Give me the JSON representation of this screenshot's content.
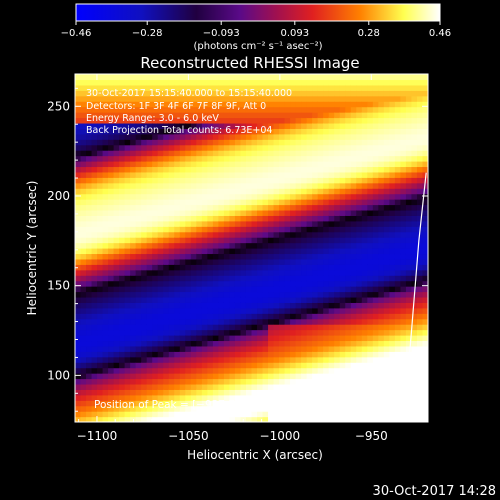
{
  "chart_data": {
    "type": "heatmap",
    "title": "Reconstructed RHESSI Image",
    "xlabel": "Heliocentric X (arcsec)",
    "ylabel": "Heliocentric Y (arcsec)",
    "xlim": [
      -1112,
      -919
    ],
    "ylim": [
      74,
      268
    ],
    "x_ticks": [
      -1100,
      -1050,
      -1000,
      -950
    ],
    "x_tick_labels": [
      "−1100",
      "−1050",
      "−1000",
      "−950"
    ],
    "y_ticks": [
      100,
      150,
      200,
      250
    ],
    "y_tick_labels": [
      "100",
      "150",
      "200",
      "250"
    ],
    "colorbar": {
      "min": -0.46,
      "max": 0.46,
      "ticks": [
        -0.46,
        -0.28,
        -0.093,
        0.093,
        0.28,
        0.46
      ],
      "tick_labels": [
        "−0.46",
        "−0.28",
        "−0.093",
        "0.093",
        "0.28",
        "0.46"
      ],
      "unit_label": "(photons cm⁻² s⁻¹ asec⁻²)",
      "colors": [
        "#0000ff",
        "#1a1aa0",
        "#000000",
        "#5a0a88",
        "#a01050",
        "#e02020",
        "#ff8000",
        "#ffff60",
        "#ffffff"
      ]
    },
    "annotations": {
      "time": "30-Oct-2017 15:15:40.000 to 15:15:40.000",
      "detectors": "Detectors: 1F 3F 4F 6F 7F 8F 9F, Att 0",
      "energy": "Energy Range: 3.0 - 6.0 keV",
      "method": "Back Projection   Total counts: 6.73E+04",
      "peak": "Position of Peak = [−937,73]"
    },
    "grid": false,
    "limb_curve_x": [
      -932,
      -928,
      -924,
      -920
    ],
    "limb_curve_y": [
      76,
      125,
      175,
      213
    ]
  },
  "footer": {
    "date": "30-Oct-2017 14:28"
  }
}
